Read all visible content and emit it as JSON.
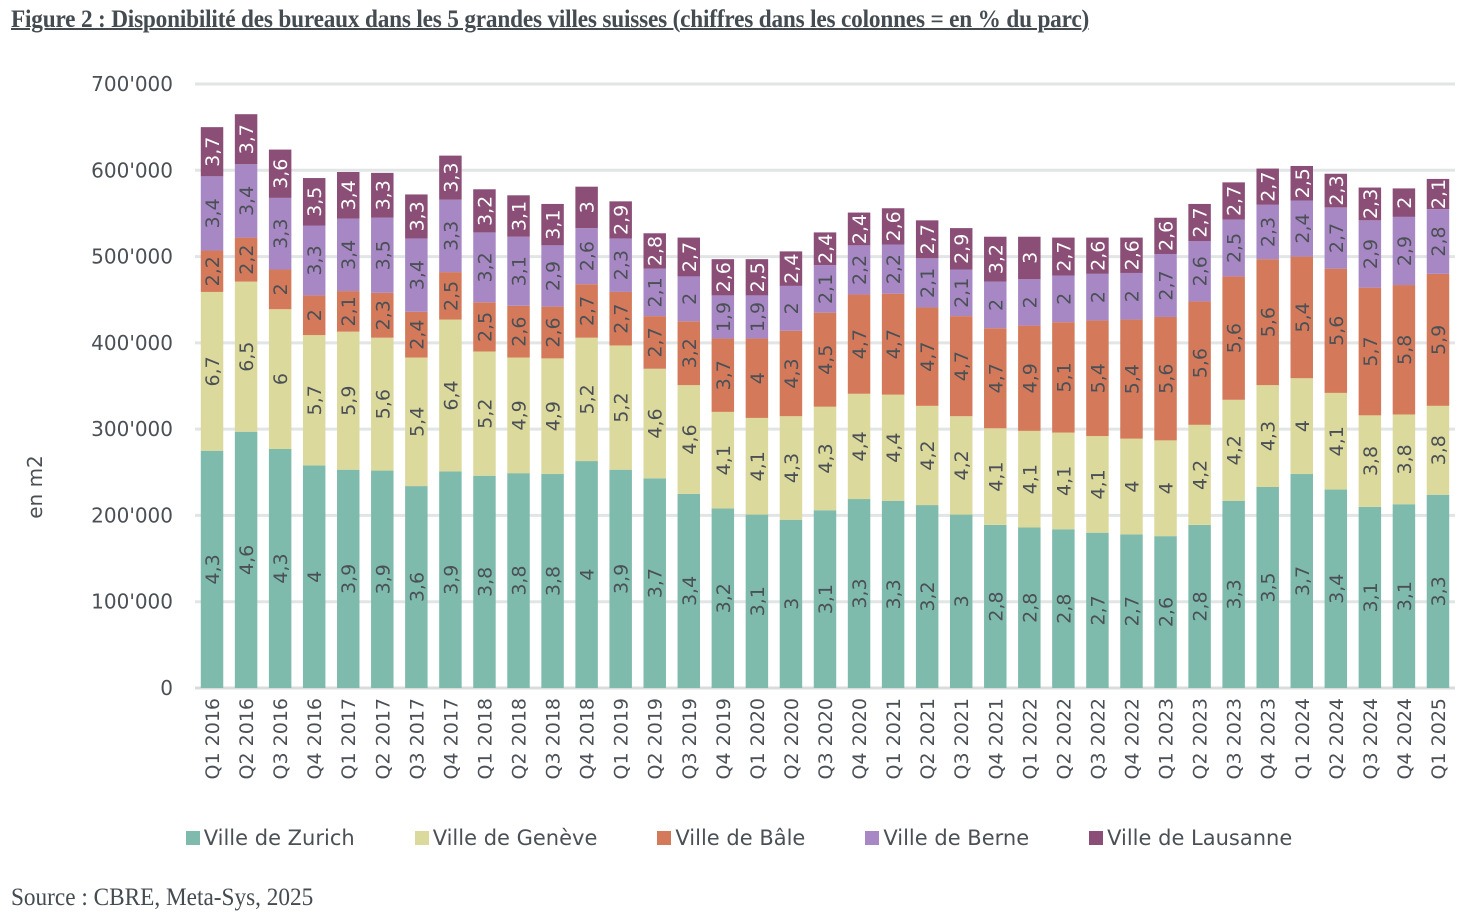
{
  "title": "Figure 2 : Disponibilité des bureaux dans les 5 grandes villes suisses (chiffres dans les colonnes = en % du parc)",
  "source": "Source : CBRE, Meta-Sys, 2025",
  "chart_data": {
    "type": "bar",
    "stacked": true,
    "title": "Figure 2 : Disponibilité des bureaux dans les 5 grandes villes suisses (chiffres dans les colonnes = en % du parc)",
    "xlabel": "",
    "ylabel": "en m2",
    "ylim": [
      0,
      700000
    ],
    "yticks": [
      0,
      100000,
      200000,
      300000,
      400000,
      500000,
      600000,
      700000
    ],
    "ytick_labels": [
      "0",
      "100'000",
      "200'000",
      "300'000",
      "400'000",
      "500'000",
      "600'000",
      "700'000"
    ],
    "grid": true,
    "legend_position": "bottom",
    "categories": [
      "Q1 2016",
      "Q2 2016",
      "Q3 2016",
      "Q4 2016",
      "Q1 2017",
      "Q2 2017",
      "Q3 2017",
      "Q4 2017",
      "Q1 2018",
      "Q2 2018",
      "Q3 2018",
      "Q4 2018",
      "Q1 2019",
      "Q2 2019",
      "Q3 2019",
      "Q4 2019",
      "Q1 2020",
      "Q2 2020",
      "Q3 2020",
      "Q4 2020",
      "Q1 2021",
      "Q2 2021",
      "Q3 2021",
      "Q4 2021",
      "Q1 2022",
      "Q2 2022",
      "Q3 2022",
      "Q4 2022",
      "Q1 2023",
      "Q2 2023",
      "Q3 2023",
      "Q4 2023",
      "Q1 2024",
      "Q2 2024",
      "Q3 2024",
      "Q4 2024",
      "Q1 2025"
    ],
    "series": [
      {
        "name": "Ville de Zurich",
        "color": "#7fbbad",
        "label_color": "#4a5056",
        "values": [
          275000,
          297000,
          277000,
          258000,
          253000,
          252000,
          234000,
          251000,
          246000,
          249000,
          248000,
          263000,
          253000,
          243000,
          225000,
          208000,
          201000,
          195000,
          206000,
          219000,
          217000,
          212000,
          201000,
          189000,
          186000,
          184000,
          180000,
          178000,
          176000,
          189000,
          217000,
          233000,
          248000,
          230000,
          210000,
          213000,
          224000
        ],
        "pct_labels": [
          "4,3",
          "4,6",
          "4,3",
          "4",
          "3,9",
          "3,9",
          "3,6",
          "3,9",
          "3,8",
          "3,8",
          "3,8",
          "4",
          "3,9",
          "3,7",
          "3,4",
          "3,2",
          "3,1",
          "3",
          "3,1",
          "3,3",
          "3,3",
          "3,2",
          "3",
          "2,8",
          "2,8",
          "2,8",
          "2,7",
          "2,7",
          "2,6",
          "2,8",
          "3,3",
          "3,5",
          "3,7",
          "3,4",
          "3,1",
          "3,1",
          "3,3"
        ]
      },
      {
        "name": "Ville de Genève",
        "color": "#dcd99c",
        "label_color": "#4a5056",
        "values": [
          184000,
          174000,
          162000,
          151000,
          160000,
          154000,
          149000,
          176000,
          144000,
          134000,
          134000,
          143000,
          144000,
          127000,
          126000,
          112000,
          112000,
          120000,
          120000,
          122000,
          123000,
          115000,
          114000,
          112000,
          112000,
          112000,
          112000,
          111000,
          111000,
          116000,
          117000,
          118000,
          111000,
          112000,
          106000,
          104000,
          103000
        ],
        "pct_labels": [
          "6,7",
          "6,5",
          "6",
          "5,7",
          "5,9",
          "5,6",
          "5,4",
          "6,4",
          "5,2",
          "4,9",
          "4,9",
          "5,2",
          "5,2",
          "4,6",
          "4,6",
          "4,1",
          "4,1",
          "4,3",
          "4,3",
          "4,4",
          "4,4",
          "4,2",
          "4,2",
          "4,1",
          "4,1",
          "4,1",
          "4,1",
          "4",
          "4",
          "4,2",
          "4,2",
          "4,3",
          "4",
          "4,1",
          "3,8",
          "3,8",
          "3,8"
        ]
      },
      {
        "name": "Ville de Bâle",
        "color": "#d47a5a",
        "label_color": "#4a5056",
        "values": [
          48000,
          51000,
          46000,
          46000,
          47000,
          52000,
          53000,
          55000,
          57000,
          60000,
          60000,
          62000,
          62000,
          61000,
          74000,
          85000,
          92000,
          99000,
          109000,
          115000,
          117000,
          114000,
          116000,
          116000,
          122000,
          128000,
          134000,
          138000,
          143000,
          143000,
          143000,
          146000,
          141000,
          144000,
          148000,
          150000,
          153000
        ],
        "pct_labels": [
          "2,2",
          "2,2",
          "2",
          "2",
          "2,1",
          "2,3",
          "2,4",
          "2,5",
          "2,5",
          "2,6",
          "2,6",
          "2,7",
          "2,7",
          "2,7",
          "3,2",
          "3,7",
          "4",
          "4,3",
          "4,5",
          "4,7",
          "4,7",
          "4,7",
          "4,7",
          "4,7",
          "4,9",
          "5,1",
          "5,4",
          "5,4",
          "5,6",
          "5,6",
          "5,6",
          "5,6",
          "5,4",
          "5,6",
          "5,7",
          "5,8",
          "5,9"
        ]
      },
      {
        "name": "Ville de Berne",
        "color": "#a888c4",
        "label_color": "#4a5056",
        "values": [
          86000,
          85000,
          83000,
          81000,
          84000,
          87000,
          85000,
          84000,
          81000,
          80000,
          71000,
          65000,
          62000,
          55000,
          52000,
          50000,
          50000,
          52000,
          55000,
          57000,
          57000,
          57000,
          54000,
          54000,
          54000,
          54000,
          54000,
          54000,
          73000,
          70000,
          66000,
          63000,
          65000,
          71000,
          78000,
          79000,
          75000
        ],
        "pct_labels": [
          "3,4",
          "3,4",
          "3,3",
          "3,3",
          "3,4",
          "3,5",
          "3,4",
          "3,3",
          "3,2",
          "3,1",
          "2,9",
          "2,6",
          "2,3",
          "2,1",
          "2",
          "1,9",
          "1,9",
          "2",
          "2,1",
          "2,2",
          "2,2",
          "2,1",
          "2,1",
          "2",
          "2",
          "2",
          "2",
          "2",
          "2,7",
          "2,6",
          "2,5",
          "2,3",
          "2,4",
          "2,7",
          "2,9",
          "2,9",
          "2,8"
        ]
      },
      {
        "name": "Ville de Lausanne",
        "color": "#8b4e77",
        "label_color": "#ffffff",
        "values": [
          57000,
          58000,
          56000,
          55000,
          54000,
          52000,
          51000,
          51000,
          50000,
          48000,
          48000,
          48000,
          43000,
          41000,
          45000,
          42000,
          42000,
          40000,
          38000,
          38000,
          42000,
          44000,
          48000,
          52000,
          49000,
          44000,
          42000,
          41000,
          42000,
          43000,
          43000,
          42000,
          40000,
          39000,
          38000,
          33000,
          35000
        ],
        "pct_labels": [
          "3,7",
          "3,7",
          "3,6",
          "3,5",
          "3,4",
          "3,3",
          "3,3",
          "3,3",
          "3,2",
          "3,1",
          "3,1",
          "3",
          "2,9",
          "2,8",
          "2,7",
          "2,6",
          "2,5",
          "2,4",
          "2,4",
          "2,4",
          "2,6",
          "2,7",
          "2,9",
          "3,2",
          "3",
          "2,7",
          "2,6",
          "2,6",
          "2,6",
          "2,7",
          "2,7",
          "2,7",
          "2,5",
          "2,3",
          "2,3",
          "2",
          "2,1"
        ]
      }
    ]
  }
}
